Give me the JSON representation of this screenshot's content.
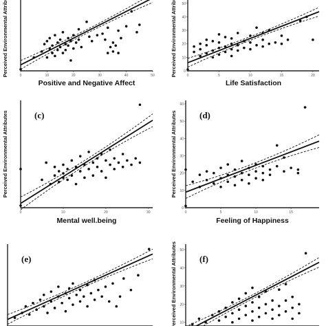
{
  "figure": {
    "ylabel": "Perceived Environmental Attributes"
  },
  "chart_data": [
    {
      "type": "scatter",
      "panel_label": "",
      "xlabel": "Positive and Negative Affect",
      "ylabel": "Perceived Environmental Attributes",
      "xticks": [
        "0",
        "10",
        "20",
        "30",
        "40",
        "50"
      ],
      "yticks": [],
      "xlim": [
        0,
        50
      ],
      "ylim": [
        0,
        50
      ],
      "fit": {
        "slope": 0.9,
        "intercept": 4
      },
      "points": [
        {
          "x": 0,
          "y": 1
        },
        {
          "x": 5,
          "y": 9
        },
        {
          "x": 8,
          "y": 13
        },
        {
          "x": 9,
          "y": 18
        },
        {
          "x": 10,
          "y": 9
        },
        {
          "x": 10,
          "y": 20
        },
        {
          "x": 11,
          "y": 15
        },
        {
          "x": 11,
          "y": 22
        },
        {
          "x": 12,
          "y": 12
        },
        {
          "x": 12,
          "y": 17
        },
        {
          "x": 13,
          "y": 10
        },
        {
          "x": 13,
          "y": 24
        },
        {
          "x": 14,
          "y": 14
        },
        {
          "x": 14,
          "y": 19
        },
        {
          "x": 15,
          "y": 21
        },
        {
          "x": 15,
          "y": 16
        },
        {
          "x": 16,
          "y": 12
        },
        {
          "x": 16,
          "y": 26
        },
        {
          "x": 17,
          "y": 18
        },
        {
          "x": 17,
          "y": 14
        },
        {
          "x": 18,
          "y": 22
        },
        {
          "x": 18,
          "y": 17
        },
        {
          "x": 19,
          "y": 20
        },
        {
          "x": 19,
          "y": 7
        },
        {
          "x": 20,
          "y": 24
        },
        {
          "x": 20,
          "y": 15
        },
        {
          "x": 21,
          "y": 19
        },
        {
          "x": 22,
          "y": 28
        },
        {
          "x": 22,
          "y": 21
        },
        {
          "x": 23,
          "y": 16
        },
        {
          "x": 25,
          "y": 33
        },
        {
          "x": 26,
          "y": 23
        },
        {
          "x": 27,
          "y": 20
        },
        {
          "x": 29,
          "y": 24
        },
        {
          "x": 31,
          "y": 25
        },
        {
          "x": 32,
          "y": 21
        },
        {
          "x": 33,
          "y": 29
        },
        {
          "x": 33,
          "y": 12
        },
        {
          "x": 34,
          "y": 16
        },
        {
          "x": 35,
          "y": 13
        },
        {
          "x": 35,
          "y": 19
        },
        {
          "x": 36,
          "y": 17
        },
        {
          "x": 37,
          "y": 12
        },
        {
          "x": 37,
          "y": 27
        },
        {
          "x": 38,
          "y": 22
        },
        {
          "x": 40,
          "y": 30
        },
        {
          "x": 42,
          "y": 40
        },
        {
          "x": 44,
          "y": 26
        },
        {
          "x": 45,
          "y": 31
        }
      ]
    },
    {
      "type": "scatter",
      "panel_label": "",
      "xlabel": "Life Satisfaction",
      "ylabel": "Perceived Environmental Attributes",
      "xticks": [
        "0",
        "5",
        "10",
        "15",
        "20"
      ],
      "yticks": [
        "0",
        "10",
        "20",
        "30",
        "40",
        "50"
      ],
      "xlim": [
        0,
        21
      ],
      "ylim": [
        0,
        55
      ],
      "fit": {
        "slope": 1.8,
        "intercept": 6
      },
      "points": [
        {
          "x": 0,
          "y": 1
        },
        {
          "x": 1,
          "y": 14
        },
        {
          "x": 1,
          "y": 18
        },
        {
          "x": 2,
          "y": 11
        },
        {
          "x": 2,
          "y": 16
        },
        {
          "x": 2,
          "y": 20
        },
        {
          "x": 3,
          "y": 13
        },
        {
          "x": 3,
          "y": 19
        },
        {
          "x": 3,
          "y": 23
        },
        {
          "x": 4,
          "y": 10
        },
        {
          "x": 4,
          "y": 15
        },
        {
          "x": 4,
          "y": 22
        },
        {
          "x": 5,
          "y": 12
        },
        {
          "x": 5,
          "y": 17
        },
        {
          "x": 5,
          "y": 21
        },
        {
          "x": 5,
          "y": 27
        },
        {
          "x": 6,
          "y": 14
        },
        {
          "x": 6,
          "y": 18
        },
        {
          "x": 6,
          "y": 25
        },
        {
          "x": 7,
          "y": 11
        },
        {
          "x": 7,
          "y": 16
        },
        {
          "x": 7,
          "y": 20
        },
        {
          "x": 7,
          "y": 24
        },
        {
          "x": 8,
          "y": 15
        },
        {
          "x": 8,
          "y": 19
        },
        {
          "x": 8,
          "y": 28
        },
        {
          "x": 9,
          "y": 17
        },
        {
          "x": 9,
          "y": 22
        },
        {
          "x": 10,
          "y": 16
        },
        {
          "x": 10,
          "y": 21
        },
        {
          "x": 10,
          "y": 26
        },
        {
          "x": 11,
          "y": 19
        },
        {
          "x": 11,
          "y": 32
        },
        {
          "x": 12,
          "y": 18
        },
        {
          "x": 12,
          "y": 23
        },
        {
          "x": 12,
          "y": 28
        },
        {
          "x": 13,
          "y": 20
        },
        {
          "x": 13,
          "y": 30
        },
        {
          "x": 14,
          "y": 21
        },
        {
          "x": 15,
          "y": 26
        },
        {
          "x": 15,
          "y": 20
        },
        {
          "x": 16,
          "y": 23
        },
        {
          "x": 18,
          "y": 37
        },
        {
          "x": 19,
          "y": 40
        },
        {
          "x": 20,
          "y": 23
        }
      ]
    },
    {
      "type": "scatter",
      "panel_label": "(c)",
      "xlabel": "Mental well.being",
      "ylabel": "Perceived Environmental Attributes",
      "xticks": [
        "0",
        "10",
        "20",
        "30"
      ],
      "yticks": [],
      "xlim": [
        0,
        31
      ],
      "ylim": [
        0,
        50
      ],
      "fit": {
        "slope": 1.25,
        "intercept": 2
      },
      "points": [
        {
          "x": 0,
          "y": 1
        },
        {
          "x": 0,
          "y": 18
        },
        {
          "x": 5,
          "y": 13
        },
        {
          "x": 6,
          "y": 21
        },
        {
          "x": 7,
          "y": 11
        },
        {
          "x": 8,
          "y": 19
        },
        {
          "x": 8,
          "y": 15
        },
        {
          "x": 9,
          "y": 17
        },
        {
          "x": 9,
          "y": 12
        },
        {
          "x": 10,
          "y": 14
        },
        {
          "x": 10,
          "y": 20
        },
        {
          "x": 10,
          "y": 16
        },
        {
          "x": 11,
          "y": 18
        },
        {
          "x": 11,
          "y": 13
        },
        {
          "x": 12,
          "y": 22
        },
        {
          "x": 12,
          "y": 15
        },
        {
          "x": 13,
          "y": 19
        },
        {
          "x": 13,
          "y": 11
        },
        {
          "x": 14,
          "y": 17
        },
        {
          "x": 14,
          "y": 24
        },
        {
          "x": 15,
          "y": 14
        },
        {
          "x": 15,
          "y": 20
        },
        {
          "x": 16,
          "y": 18
        },
        {
          "x": 16,
          "y": 26
        },
        {
          "x": 17,
          "y": 15
        },
        {
          "x": 17,
          "y": 21
        },
        {
          "x": 18,
          "y": 19
        },
        {
          "x": 18,
          "y": 23
        },
        {
          "x": 19,
          "y": 17
        },
        {
          "x": 19,
          "y": 25
        },
        {
          "x": 20,
          "y": 22
        },
        {
          "x": 20,
          "y": 14
        },
        {
          "x": 21,
          "y": 20
        },
        {
          "x": 21,
          "y": 27
        },
        {
          "x": 22,
          "y": 23
        },
        {
          "x": 22,
          "y": 18
        },
        {
          "x": 23,
          "y": 21
        },
        {
          "x": 24,
          "y": 25
        },
        {
          "x": 24,
          "y": 19
        },
        {
          "x": 25,
          "y": 22
        },
        {
          "x": 26,
          "y": 20
        },
        {
          "x": 27,
          "y": 23
        },
        {
          "x": 28,
          "y": 48
        },
        {
          "x": 28,
          "y": 21
        }
      ]
    },
    {
      "type": "scatter",
      "panel_label": "(d)",
      "xlabel": "Feeling of Happiness",
      "ylabel": "Perceived Environmental Attributes",
      "xticks": [
        "0",
        "5",
        "10",
        "15"
      ],
      "yticks": [
        "0",
        "10",
        "20",
        "30",
        "40",
        "50",
        "60"
      ],
      "xlim": [
        0,
        19
      ],
      "ylim": [
        0,
        62
      ],
      "fit": {
        "slope": 1.55,
        "intercept": 9
      },
      "points": [
        {
          "x": 0,
          "y": 1
        },
        {
          "x": 0,
          "y": 22
        },
        {
          "x": 1,
          "y": 15
        },
        {
          "x": 2,
          "y": 12
        },
        {
          "x": 2,
          "y": 19
        },
        {
          "x": 3,
          "y": 16
        },
        {
          "x": 3,
          "y": 21
        },
        {
          "x": 4,
          "y": 14
        },
        {
          "x": 4,
          "y": 20
        },
        {
          "x": 5,
          "y": 17
        },
        {
          "x": 5,
          "y": 23
        },
        {
          "x": 5,
          "y": 12
        },
        {
          "x": 6,
          "y": 19
        },
        {
          "x": 6,
          "y": 15
        },
        {
          "x": 6,
          "y": 25
        },
        {
          "x": 7,
          "y": 18
        },
        {
          "x": 7,
          "y": 22
        },
        {
          "x": 7,
          "y": 13
        },
        {
          "x": 8,
          "y": 20
        },
        {
          "x": 8,
          "y": 16
        },
        {
          "x": 8,
          "y": 27
        },
        {
          "x": 9,
          "y": 19
        },
        {
          "x": 9,
          "y": 23
        },
        {
          "x": 9,
          "y": 14
        },
        {
          "x": 10,
          "y": 21
        },
        {
          "x": 10,
          "y": 17
        },
        {
          "x": 10,
          "y": 25
        },
        {
          "x": 11,
          "y": 20
        },
        {
          "x": 11,
          "y": 24
        },
        {
          "x": 11,
          "y": 16
        },
        {
          "x": 12,
          "y": 22
        },
        {
          "x": 12,
          "y": 19
        },
        {
          "x": 13,
          "y": 24
        },
        {
          "x": 13,
          "y": 36
        },
        {
          "x": 14,
          "y": 21
        },
        {
          "x": 14,
          "y": 29
        },
        {
          "x": 15,
          "y": 23
        },
        {
          "x": 16,
          "y": 20
        },
        {
          "x": 16,
          "y": 22
        },
        {
          "x": 17,
          "y": 58
        }
      ]
    },
    {
      "type": "scatter",
      "panel_label": "(e)",
      "xlabel": "",
      "ylabel": "Perceived Environmental Attributes",
      "xticks": [],
      "yticks": [],
      "xlim": [
        0,
        40
      ],
      "ylim": [
        0,
        50
      ],
      "fit": {
        "slope": 1.0,
        "intercept": 4
      },
      "points": [
        {
          "x": 2,
          "y": 5
        },
        {
          "x": 4,
          "y": 8
        },
        {
          "x": 5,
          "y": 12
        },
        {
          "x": 6,
          "y": 7
        },
        {
          "x": 7,
          "y": 14
        },
        {
          "x": 8,
          "y": 10
        },
        {
          "x": 9,
          "y": 16
        },
        {
          "x": 10,
          "y": 12
        },
        {
          "x": 10,
          "y": 19
        },
        {
          "x": 11,
          "y": 8
        },
        {
          "x": 12,
          "y": 15
        },
        {
          "x": 12,
          "y": 21
        },
        {
          "x": 13,
          "y": 11
        },
        {
          "x": 14,
          "y": 18
        },
        {
          "x": 14,
          "y": 24
        },
        {
          "x": 15,
          "y": 14
        },
        {
          "x": 16,
          "y": 20
        },
        {
          "x": 16,
          "y": 9
        },
        {
          "x": 17,
          "y": 17
        },
        {
          "x": 17,
          "y": 23
        },
        {
          "x": 18,
          "y": 13
        },
        {
          "x": 18,
          "y": 26
        },
        {
          "x": 19,
          "y": 19
        },
        {
          "x": 20,
          "y": 15
        },
        {
          "x": 20,
          "y": 22
        },
        {
          "x": 21,
          "y": 18
        },
        {
          "x": 22,
          "y": 25
        },
        {
          "x": 22,
          "y": 12
        },
        {
          "x": 23,
          "y": 20
        },
        {
          "x": 24,
          "y": 16
        },
        {
          "x": 24,
          "y": 28
        },
        {
          "x": 25,
          "y": 22
        },
        {
          "x": 26,
          "y": 18
        },
        {
          "x": 27,
          "y": 24
        },
        {
          "x": 28,
          "y": 15
        },
        {
          "x": 29,
          "y": 26
        },
        {
          "x": 30,
          "y": 12
        },
        {
          "x": 31,
          "y": 18
        },
        {
          "x": 32,
          "y": 29
        },
        {
          "x": 34,
          "y": 22
        },
        {
          "x": 36,
          "y": 31
        },
        {
          "x": 39,
          "y": 47
        }
      ]
    },
    {
      "type": "scatter",
      "panel_label": "(f)",
      "xlabel": "",
      "ylabel": "Perceived Environmental Attributes",
      "xticks": [],
      "yticks": [
        "10",
        "20",
        "30",
        "40",
        "50"
      ],
      "xlim": [
        0,
        20
      ],
      "ylim": [
        8,
        53
      ],
      "fit": {
        "slope": 1.9,
        "intercept": 5
      },
      "points": [
        {
          "x": 1,
          "y": 9
        },
        {
          "x": 2,
          "y": 12
        },
        {
          "x": 3,
          "y": 10
        },
        {
          "x": 4,
          "y": 14
        },
        {
          "x": 5,
          "y": 11
        },
        {
          "x": 5,
          "y": 16
        },
        {
          "x": 6,
          "y": 13
        },
        {
          "x": 6,
          "y": 18
        },
        {
          "x": 7,
          "y": 10
        },
        {
          "x": 7,
          "y": 15
        },
        {
          "x": 7,
          "y": 21
        },
        {
          "x": 8,
          "y": 12
        },
        {
          "x": 8,
          "y": 17
        },
        {
          "x": 8,
          "y": 23
        },
        {
          "x": 9,
          "y": 14
        },
        {
          "x": 9,
          "y": 19
        },
        {
          "x": 9,
          "y": 26
        },
        {
          "x": 10,
          "y": 11
        },
        {
          "x": 10,
          "y": 16
        },
        {
          "x": 10,
          "y": 21
        },
        {
          "x": 10,
          "y": 29
        },
        {
          "x": 11,
          "y": 13
        },
        {
          "x": 11,
          "y": 18
        },
        {
          "x": 11,
          "y": 24
        },
        {
          "x": 12,
          "y": 15
        },
        {
          "x": 12,
          "y": 20
        },
        {
          "x": 12,
          "y": 27
        },
        {
          "x": 13,
          "y": 12
        },
        {
          "x": 13,
          "y": 17
        },
        {
          "x": 13,
          "y": 22
        },
        {
          "x": 14,
          "y": 14
        },
        {
          "x": 14,
          "y": 19
        },
        {
          "x": 14,
          "y": 28
        },
        {
          "x": 15,
          "y": 16
        },
        {
          "x": 15,
          "y": 22
        },
        {
          "x": 15,
          "y": 31
        },
        {
          "x": 16,
          "y": 12
        },
        {
          "x": 16,
          "y": 18
        },
        {
          "x": 16,
          "y": 24
        },
        {
          "x": 17,
          "y": 20
        },
        {
          "x": 17,
          "y": 15
        },
        {
          "x": 18,
          "y": 48
        }
      ]
    }
  ]
}
